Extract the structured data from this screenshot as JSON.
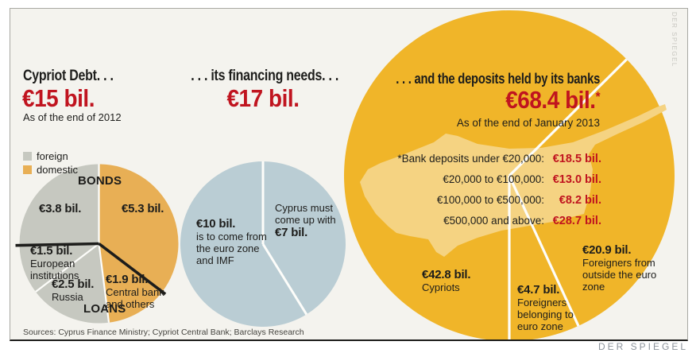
{
  "brand": {
    "logo": "DER SPIEGEL",
    "watermark": "DER SPIEGEL"
  },
  "footer": {
    "sources": "Sources: Cyprus Finance Ministry; Cypriot Central Bank; Barclays Research"
  },
  "colors": {
    "background": "#f4f3ee",
    "red": "#c0141f",
    "gold": "#f0b529",
    "gold_light": "#f5d382",
    "domestic_orange": "#e8af55",
    "foreign_gray": "#c6c8c0",
    "blue": "#bacdd4",
    "black": "#1d1d1b"
  },
  "debt": {
    "title": "Cypriot Debt. . .",
    "amount": "€15 bil.",
    "asof": "As of the end of 2012",
    "legend": {
      "foreign": "foreign",
      "domestic": "domestic"
    },
    "bonds_label": "BONDS",
    "loans_label": "LOANS",
    "foreign_bonds_value": "€3.8 bil.",
    "domestic_bonds_value": "€5.3 bil.",
    "european": {
      "value": "€1.5 bil.",
      "desc": "European institutions"
    },
    "russia": {
      "value": "€2.5 bil.",
      "desc": "Russia"
    },
    "central_bank": {
      "value": "€1.9 bil.",
      "desc": "Central bank and others"
    }
  },
  "financing": {
    "title": ". . . its financing needs. . .",
    "amount": "€17 bil.",
    "eurozone": {
      "value": "€10 bil.",
      "desc": "is to come from the euro zone and IMF"
    },
    "cyprus": {
      "desc": "Cyprus must come up with",
      "value": "€7 bil."
    }
  },
  "deposits": {
    "title": ". . . and the deposits held by its banks",
    "amount": "€68.4 bil.",
    "asterisk": "*",
    "asof": "As of the end of January 2013",
    "table": {
      "rows": [
        {
          "label": "*Bank deposits under €20,000:",
          "value": "€18.5 bil."
        },
        {
          "label": "€20,000 to €100,000:",
          "value": "€13.0 bil."
        },
        {
          "label": "€100,000 to €500,000:",
          "value": "€8.2 bil."
        },
        {
          "label": "€500,000 and above:",
          "value": "€28.7 bil."
        }
      ]
    },
    "cypriots": {
      "value": "€42.8 bil.",
      "desc": "Cypriots"
    },
    "foreigners_euro": {
      "value": "€4.7 bil.",
      "desc": "Foreigners belonging to euro zone"
    },
    "foreigners_outside": {
      "value": "€20.9 bil.",
      "desc": "Foreigners from outside the euro zone"
    }
  },
  "chart_data": [
    {
      "id": "debt",
      "type": "pie",
      "title": "Cypriot Debt (€15 bil., end of 2012)",
      "total": 15,
      "unit": "€ bil.",
      "start_angle": 0,
      "legend_position": "top-left",
      "slices": [
        {
          "label": "Domestic bonds",
          "value": 5.3,
          "color": "#e8af55",
          "group": "BONDS",
          "ownership": "domestic"
        },
        {
          "label": "Central bank and others",
          "value": 1.9,
          "color": "#e8af55",
          "group": "LOANS",
          "ownership": "domestic"
        },
        {
          "label": "Russia",
          "value": 2.5,
          "color": "#c6c8c0",
          "group": "LOANS",
          "ownership": "foreign"
        },
        {
          "label": "European institutions",
          "value": 1.5,
          "color": "#c6c8c0",
          "group": "LOANS",
          "ownership": "foreign"
        },
        {
          "label": "Foreign bonds",
          "value": 3.8,
          "color": "#c6c8c0",
          "group": "BONDS",
          "ownership": "foreign"
        }
      ],
      "dividers": {
        "white_after": [
          1,
          2,
          4
        ],
        "black_after": [
          0,
          3
        ]
      },
      "divider_width": 2.2,
      "black_width": 3.6
    },
    {
      "id": "financing",
      "type": "pie",
      "title": "Financing needs (€17 bil.)",
      "total": 17,
      "unit": "€ bil.",
      "start_angle": 0,
      "slices": [
        {
          "label": "Cyprus must come up with",
          "value": 7,
          "color": "#bacdd4"
        },
        {
          "label": "To come from the euro zone and IMF",
          "value": 10,
          "color": "#bacdd4"
        }
      ],
      "dividers": {
        "white_after": [
          0,
          1
        ]
      },
      "divider_width": 3
    },
    {
      "id": "deposits",
      "type": "pie",
      "title": "Deposits held by Cypriot banks (€68.4 bil., end of January 2013)",
      "total": 68.4,
      "unit": "€ bil.",
      "start_angle": 180,
      "slices": [
        {
          "label": "Cypriots",
          "value": 42.8,
          "color": "#f0b529"
        },
        {
          "label": "Foreigners from outside the euro zone",
          "value": 20.9,
          "color": "#f0b529"
        },
        {
          "label": "Foreigners belonging to euro zone",
          "value": 4.7,
          "color": "#f0b529"
        }
      ],
      "dividers": {
        "white_after": [
          0,
          1,
          2
        ]
      },
      "divider_width": 3.2,
      "breakdown_by_size": [
        {
          "label": "Bank deposits under €20,000",
          "value": 18.5
        },
        {
          "label": "€20,000 to €100,000",
          "value": 13.0
        },
        {
          "label": "€100,000 to €500,000",
          "value": 8.2
        },
        {
          "label": "€500,000 and above",
          "value": 28.7
        }
      ]
    }
  ]
}
